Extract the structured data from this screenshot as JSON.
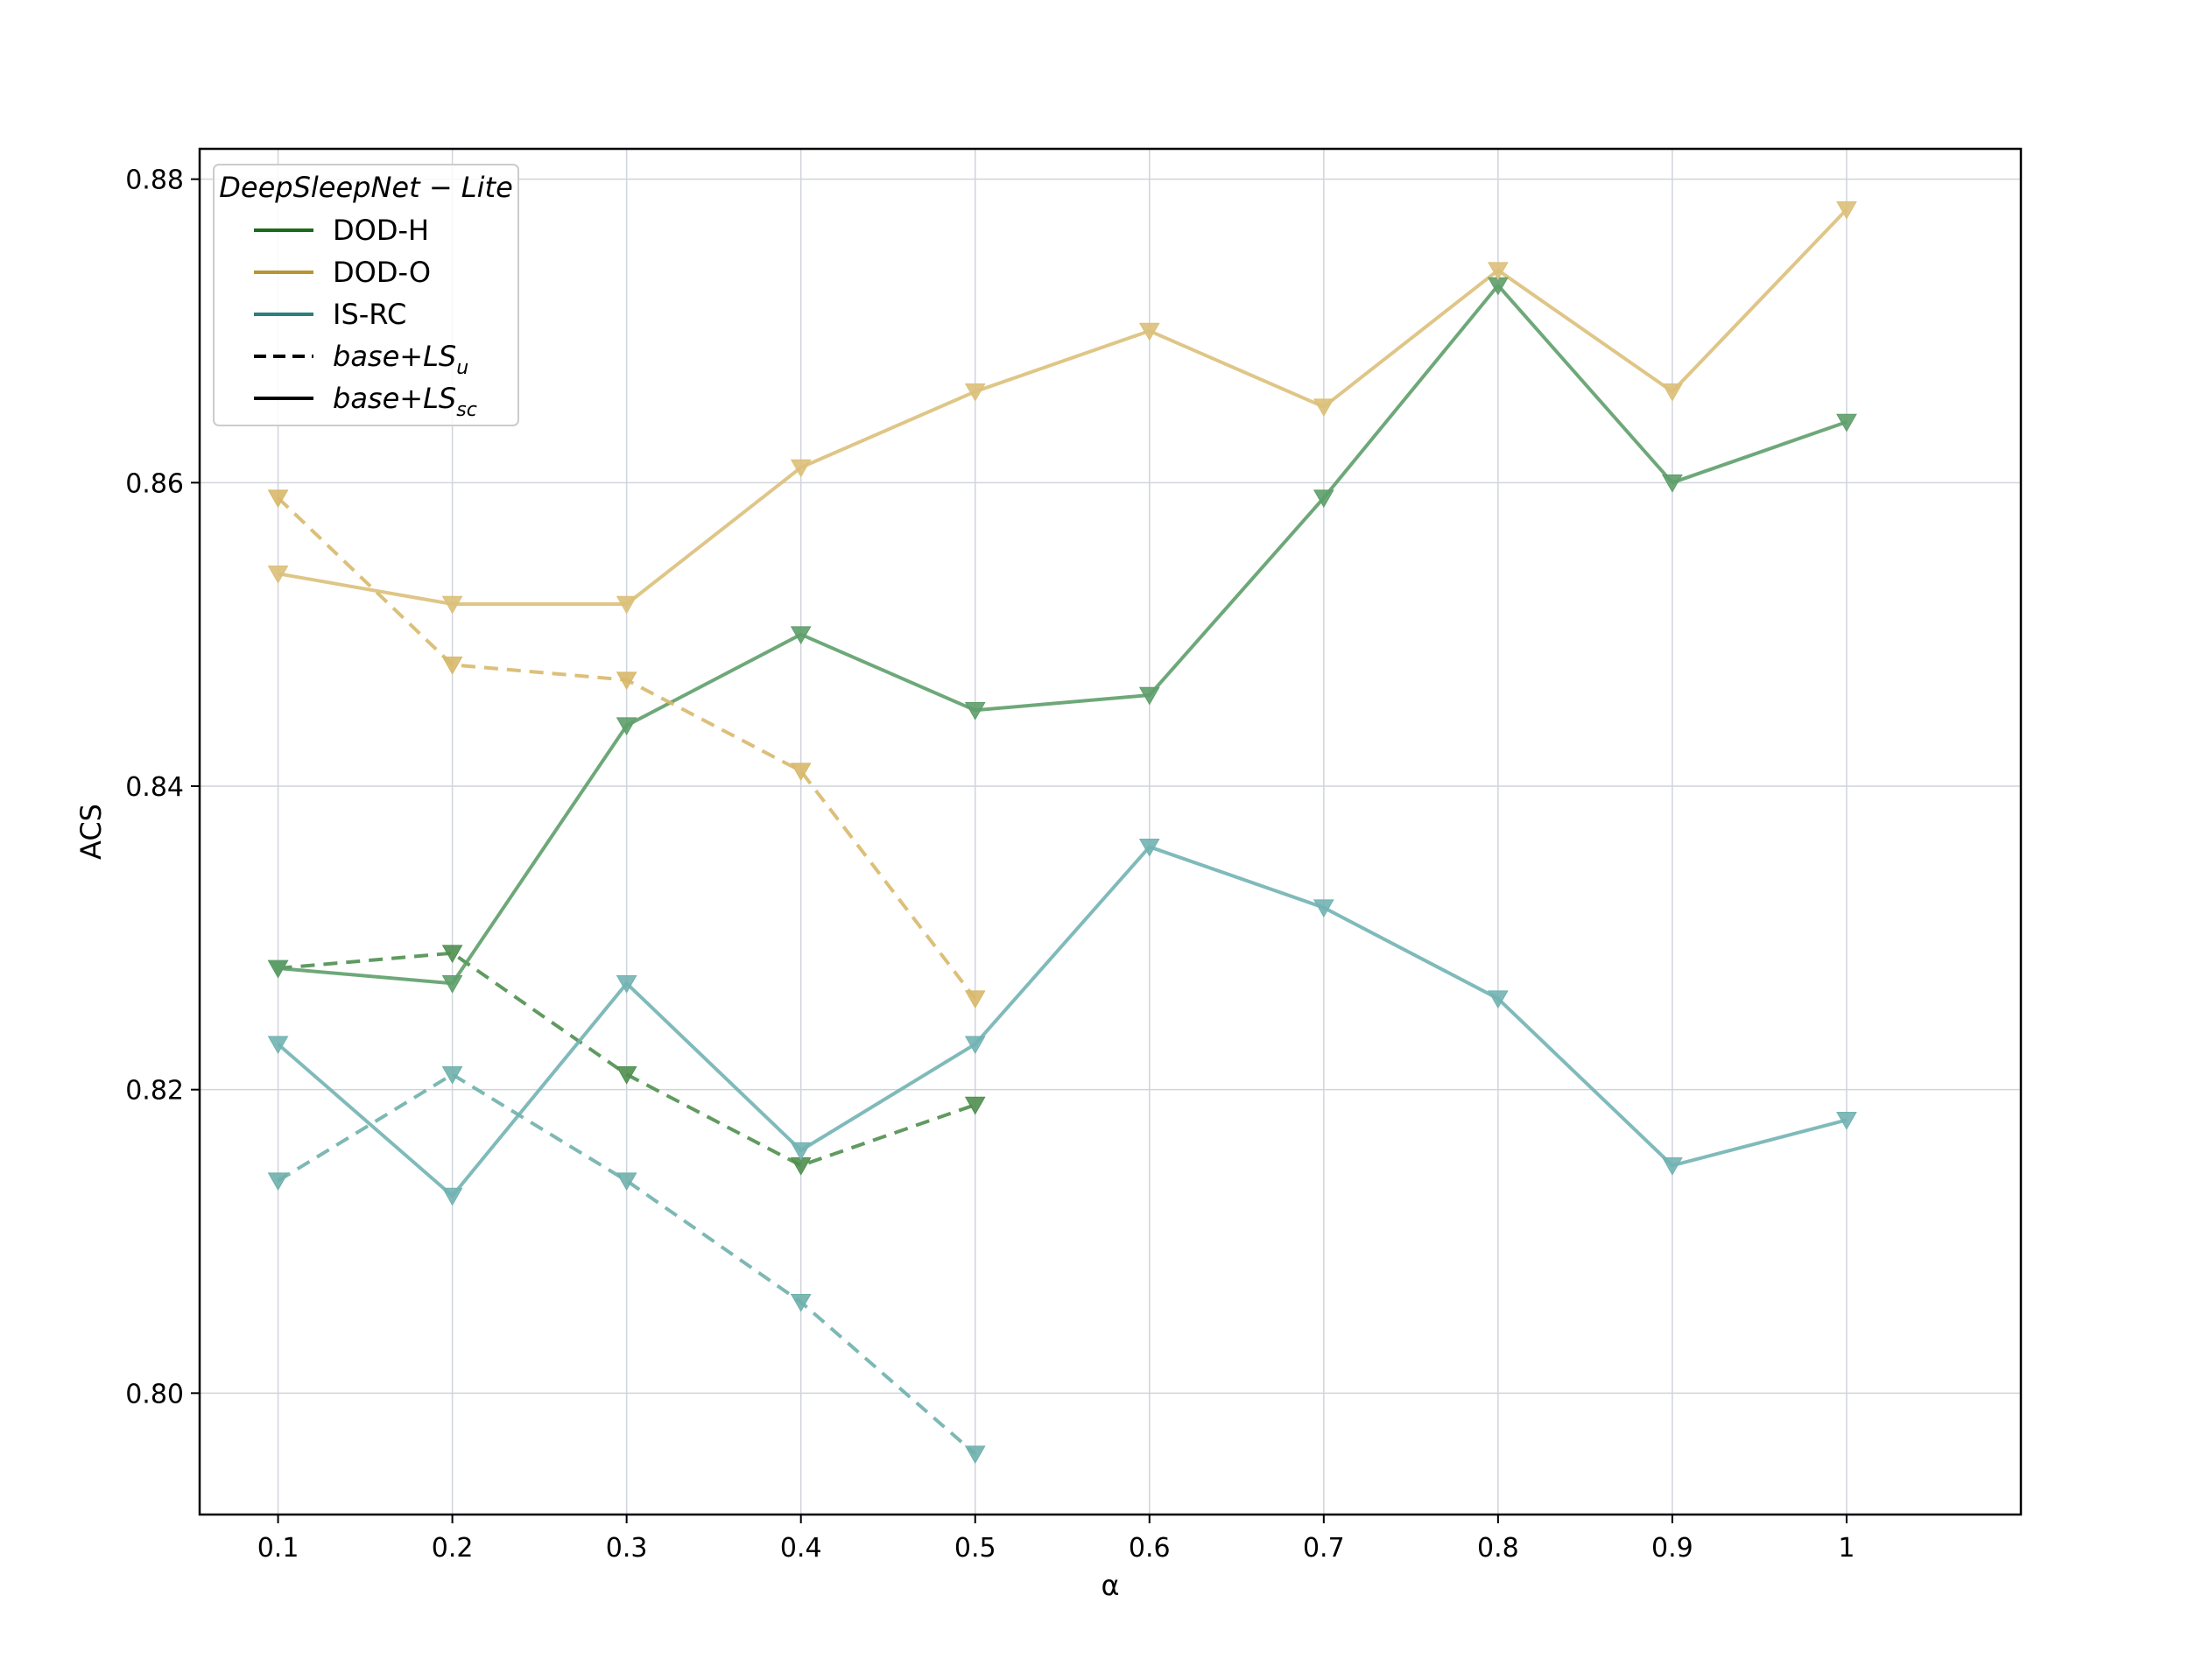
{
  "chart_data": {
    "type": "line",
    "xlabel": "α",
    "ylabel": "ACS",
    "x": [
      0.1,
      0.2,
      0.3,
      0.4,
      0.5,
      0.6,
      0.7,
      0.8,
      0.9,
      1.0
    ],
    "x_tick_labels": [
      "0.1",
      "0.2",
      "0.3",
      "0.4",
      "0.5",
      "0.6",
      "0.7",
      "0.8",
      "0.9",
      "1"
    ],
    "xlim": [
      0.055,
      1.1
    ],
    "y_ticks": [
      0.8,
      0.82,
      0.84,
      0.86,
      0.88
    ],
    "y_tick_labels": [
      "0.80",
      "0.82",
      "0.84",
      "0.86",
      "0.88"
    ],
    "ylim": [
      0.792,
      0.882
    ],
    "grid": true,
    "marker": "triangle-down",
    "legend": {
      "title": "DeepSleepNet − Lite",
      "position": "top-left",
      "entries": [
        {
          "label": "DOD-H",
          "color": "#1a6b1a",
          "style": "solid"
        },
        {
          "label": "DOD-O",
          "color": "#b8952e",
          "style": "solid"
        },
        {
          "label": "IS-RC",
          "color": "#2a7f7f",
          "style": "solid"
        },
        {
          "label": "base+LS",
          "sub": "u",
          "color": "#000000",
          "style": "dashed"
        },
        {
          "label": "base+LS",
          "sub": "sc",
          "color": "#000000",
          "style": "solid"
        }
      ]
    },
    "series": [
      {
        "dataset": "DOD-H",
        "variant": "u",
        "color": "#4f8f4f",
        "dashed": true,
        "values": [
          0.828,
          0.829,
          0.821,
          0.815,
          0.819,
          null,
          null,
          null,
          null,
          null
        ]
      },
      {
        "dataset": "DOD-H",
        "variant": "sc",
        "color": "#5e9e6a",
        "dashed": false,
        "values": [
          0.828,
          0.827,
          0.844,
          0.85,
          0.845,
          0.846,
          0.859,
          0.873,
          0.86,
          0.864
        ]
      },
      {
        "dataset": "DOD-O",
        "variant": "u",
        "color": "#d8b86a",
        "dashed": true,
        "values": [
          0.859,
          0.848,
          0.847,
          0.841,
          0.826,
          null,
          null,
          null,
          null,
          null
        ]
      },
      {
        "dataset": "DOD-O",
        "variant": "sc",
        "color": "#dcc07a",
        "dashed": false,
        "values": [
          0.854,
          0.852,
          0.852,
          0.861,
          0.866,
          0.87,
          0.865,
          0.874,
          0.866,
          0.878
        ]
      },
      {
        "dataset": "IS-RC",
        "variant": "u",
        "color": "#6fb0ac",
        "dashed": true,
        "values": [
          0.814,
          0.821,
          0.814,
          0.806,
          0.796,
          null,
          null,
          null,
          null,
          null
        ]
      },
      {
        "dataset": "IS-RC",
        "variant": "sc",
        "color": "#72b3b3",
        "dashed": false,
        "values": [
          0.823,
          0.813,
          0.827,
          0.816,
          0.823,
          0.836,
          0.832,
          0.826,
          0.815,
          0.818
        ]
      }
    ]
  }
}
